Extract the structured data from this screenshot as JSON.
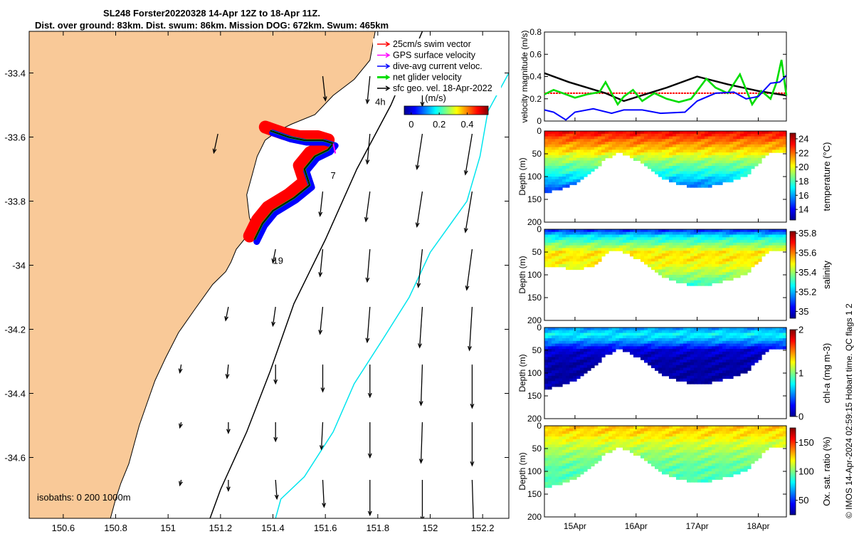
{
  "title_line1": "SL248 Forster20220328 14-Apr 12Z to 18-Apr 11Z.",
  "title_line2": "Dist. over ground: 83km. Dist. swum: 86km. Mission DOG: 672km. Swum: 465km",
  "credit": "© IMOS 14-Apr-2024 02:59:15 Hobart time. QC flags 1  2",
  "colors": {
    "land": "#f9c998",
    "swim": "#ff0000",
    "gps": "#ff00ff",
    "dive": "#0000ff",
    "net": "#00dd00",
    "sfc": "#000000",
    "isobath200": "#000000",
    "isobath1000": "#00e5ee"
  },
  "map": {
    "xlim": [
      150.47,
      152.3
    ],
    "ylim": [
      -34.79,
      -33.27
    ],
    "xticks": [
      150.6,
      150.8,
      151,
      151.2,
      151.4,
      151.6,
      151.8,
      152,
      152.2
    ],
    "xtick_labels": [
      "150.6",
      "150.8",
      "151",
      "151.2",
      "151.4",
      "151.6",
      "151.8",
      "152",
      "152.2"
    ],
    "yticks": [
      -33.4,
      -33.6,
      -33.8,
      -34,
      -34.2,
      -34.4,
      -34.6
    ],
    "ytick_labels": [
      "-33.4",
      "-33.6",
      "-33.8",
      "-34",
      "-34.2",
      "-34.4",
      "-34.6"
    ],
    "legend": [
      {
        "label": "25cm/s swim vector",
        "color": "#ff0000",
        "icon": "red-arrow-icon"
      },
      {
        "label": "GPS surface velocity",
        "color": "#ff00ff",
        "icon": "magenta-arrow-icon"
      },
      {
        "label": "dive-avg current veloc.",
        "color": "#0000ff",
        "icon": "blue-arrow-icon"
      },
      {
        "label": "net glider velocity",
        "color": "#00dd00",
        "icon": "green-arrow-icon"
      },
      {
        "label": "sfc geo. vel. 18-Apr-2022",
        "color": "#000000",
        "icon": "black-arrow-icon"
      }
    ],
    "colorbar_title": "(m/s)",
    "colorbar_ticks": [
      0,
      0.2,
      0.4
    ],
    "colorbar_tick_labels": [
      "0",
      "0.2",
      "0.4"
    ],
    "colorbar_range": [
      -0.05,
      0.55
    ],
    "isobath_label": "isobaths: 0   200   1000m",
    "track_labels": [
      {
        "text": "4h",
        "lon": 151.79,
        "lat": -33.5
      },
      {
        "text": "7",
        "lon": 151.62,
        "lat": -33.73
      },
      {
        "text": "19",
        "lon": 151.4,
        "lat": -33.995
      }
    ],
    "coast": [
      [
        150.47,
        -33.27
      ],
      [
        151.79,
        -33.27
      ],
      [
        151.77,
        -33.36
      ],
      [
        151.71,
        -33.42
      ],
      [
        151.63,
        -33.47
      ],
      [
        151.56,
        -33.53
      ],
      [
        151.47,
        -33.56
      ],
      [
        151.42,
        -33.58
      ],
      [
        151.37,
        -33.61
      ],
      [
        151.34,
        -33.66
      ],
      [
        151.32,
        -33.72
      ],
      [
        151.3,
        -33.78
      ],
      [
        151.31,
        -33.85
      ],
      [
        151.33,
        -33.9
      ],
      [
        151.29,
        -33.92
      ],
      [
        151.26,
        -33.95
      ],
      [
        151.24,
        -33.99
      ],
      [
        151.22,
        -34.02
      ],
      [
        151.17,
        -34.06
      ],
      [
        151.1,
        -34.14
      ],
      [
        151.04,
        -34.21
      ],
      [
        150.99,
        -34.29
      ],
      [
        150.95,
        -34.36
      ],
      [
        150.92,
        -34.43
      ],
      [
        150.89,
        -34.5
      ],
      [
        150.87,
        -34.56
      ],
      [
        150.85,
        -34.62
      ],
      [
        150.82,
        -34.68
      ],
      [
        150.8,
        -34.73
      ],
      [
        150.78,
        -34.79
      ],
      [
        150.47,
        -34.79
      ]
    ],
    "isobath200": [
      [
        151.97,
        -33.27
      ],
      [
        151.85,
        -33.5
      ],
      [
        151.72,
        -33.7
      ],
      [
        151.6,
        -33.92
      ],
      [
        151.48,
        -34.12
      ],
      [
        151.39,
        -34.33
      ],
      [
        151.3,
        -34.52
      ],
      [
        151.2,
        -34.7
      ],
      [
        151.16,
        -34.79
      ]
    ],
    "isobath1000": [
      [
        152.3,
        -33.4
      ],
      [
        152.22,
        -33.52
      ],
      [
        152.19,
        -33.66
      ],
      [
        152.14,
        -33.8
      ],
      [
        152.0,
        -33.96
      ],
      [
        151.92,
        -34.1
      ],
      [
        151.82,
        -34.23
      ],
      [
        151.71,
        -34.37
      ],
      [
        151.63,
        -34.52
      ],
      [
        151.52,
        -34.66
      ],
      [
        151.43,
        -34.73
      ],
      [
        151.41,
        -34.79
      ]
    ],
    "track": [
      [
        151.39,
        -33.58
      ],
      [
        151.46,
        -33.6
      ],
      [
        151.52,
        -33.61
      ],
      [
        151.59,
        -33.61
      ],
      [
        151.63,
        -33.62
      ],
      [
        151.61,
        -33.64
      ],
      [
        151.56,
        -33.66
      ],
      [
        151.52,
        -33.7
      ],
      [
        151.54,
        -33.75
      ],
      [
        151.48,
        -33.79
      ],
      [
        151.4,
        -33.83
      ],
      [
        151.36,
        -33.87
      ],
      [
        151.33,
        -33.92
      ]
    ],
    "arrows": [
      {
        "lon": 151.59,
        "lat": -33.41,
        "u": 0.02,
        "v": -0.18
      },
      {
        "lon": 151.77,
        "lat": -33.41,
        "u": -0.02,
        "v": -0.2
      },
      {
        "lon": 151.97,
        "lat": -33.41,
        "u": 0.0,
        "v": -0.22
      },
      {
        "lon": 151.19,
        "lat": -33.59,
        "u": -0.03,
        "v": -0.14
      },
      {
        "lon": 151.77,
        "lat": -33.59,
        "u": -0.02,
        "v": -0.22
      },
      {
        "lon": 151.97,
        "lat": -33.59,
        "u": -0.04,
        "v": -0.26
      },
      {
        "lon": 152.16,
        "lat": -33.59,
        "u": -0.05,
        "v": -0.3
      },
      {
        "lon": 151.59,
        "lat": -33.77,
        "u": -0.02,
        "v": -0.18
      },
      {
        "lon": 151.77,
        "lat": -33.77,
        "u": -0.03,
        "v": -0.22
      },
      {
        "lon": 151.97,
        "lat": -33.77,
        "u": -0.04,
        "v": -0.26
      },
      {
        "lon": 152.16,
        "lat": -33.77,
        "u": -0.05,
        "v": -0.3
      },
      {
        "lon": 151.41,
        "lat": -33.95,
        "u": -0.02,
        "v": -0.1
      },
      {
        "lon": 151.59,
        "lat": -33.95,
        "u": -0.02,
        "v": -0.2
      },
      {
        "lon": 151.77,
        "lat": -33.95,
        "u": -0.02,
        "v": -0.24
      },
      {
        "lon": 151.97,
        "lat": -33.95,
        "u": -0.03,
        "v": -0.28
      },
      {
        "lon": 152.16,
        "lat": -33.95,
        "u": -0.04,
        "v": -0.3
      },
      {
        "lon": 151.23,
        "lat": -34.13,
        "u": -0.02,
        "v": -0.1
      },
      {
        "lon": 151.41,
        "lat": -34.13,
        "u": -0.02,
        "v": -0.14
      },
      {
        "lon": 151.59,
        "lat": -34.13,
        "u": -0.02,
        "v": -0.2
      },
      {
        "lon": 151.77,
        "lat": -34.13,
        "u": -0.02,
        "v": -0.26
      },
      {
        "lon": 151.97,
        "lat": -34.13,
        "u": -0.02,
        "v": -0.3
      },
      {
        "lon": 152.16,
        "lat": -34.13,
        "u": -0.02,
        "v": -0.32
      },
      {
        "lon": 151.05,
        "lat": -34.31,
        "u": -0.01,
        "v": -0.06
      },
      {
        "lon": 151.23,
        "lat": -34.31,
        "u": -0.01,
        "v": -0.1
      },
      {
        "lon": 151.41,
        "lat": -34.31,
        "u": 0.0,
        "v": -0.14
      },
      {
        "lon": 151.59,
        "lat": -34.31,
        "u": 0.0,
        "v": -0.2
      },
      {
        "lon": 151.77,
        "lat": -34.31,
        "u": 0.0,
        "v": -0.24
      },
      {
        "lon": 151.97,
        "lat": -34.31,
        "u": -0.01,
        "v": -0.3
      },
      {
        "lon": 152.16,
        "lat": -34.31,
        "u": 0.0,
        "v": -0.32
      },
      {
        "lon": 151.05,
        "lat": -34.49,
        "u": -0.01,
        "v": -0.04
      },
      {
        "lon": 151.23,
        "lat": -34.49,
        "u": 0.0,
        "v": -0.08
      },
      {
        "lon": 151.41,
        "lat": -34.49,
        "u": 0.0,
        "v": -0.14
      },
      {
        "lon": 151.59,
        "lat": -34.49,
        "u": -0.01,
        "v": -0.2
      },
      {
        "lon": 151.77,
        "lat": -34.49,
        "u": 0.0,
        "v": -0.26
      },
      {
        "lon": 151.97,
        "lat": -34.49,
        "u": -0.01,
        "v": -0.3
      },
      {
        "lon": 152.16,
        "lat": -34.49,
        "u": 0.0,
        "v": -0.32
      },
      {
        "lon": 151.05,
        "lat": -34.67,
        "u": -0.01,
        "v": -0.04
      },
      {
        "lon": 151.23,
        "lat": -34.67,
        "u": 0.0,
        "v": -0.08
      },
      {
        "lon": 151.41,
        "lat": -34.67,
        "u": 0.01,
        "v": -0.14
      },
      {
        "lon": 151.59,
        "lat": -34.67,
        "u": 0.01,
        "v": -0.2
      },
      {
        "lon": 151.77,
        "lat": -34.67,
        "u": 0.0,
        "v": -0.26
      },
      {
        "lon": 151.97,
        "lat": -34.67,
        "u": 0.0,
        "v": -0.3
      },
      {
        "lon": 152.16,
        "lat": -34.67,
        "u": 0.01,
        "v": -0.32
      }
    ]
  },
  "chart_data": [
    {
      "type": "line",
      "ylabel": "velocity magnitude (m/s)",
      "ylim": [
        0,
        0.8
      ],
      "yticks": [
        0,
        0.2,
        0.4,
        0.6,
        0.8
      ],
      "ytick_labels": [
        "0",
        "0.2",
        "0.4",
        "0.6",
        "0.8"
      ],
      "xlim": [
        14.5,
        18.46
      ],
      "xticks": [
        15,
        16,
        17,
        18
      ],
      "xtick_labels": [
        "15Apr",
        "16Apr",
        "17Apr",
        "18Apr"
      ],
      "series": [
        {
          "color": "#ff0000",
          "x": [
            14.5,
            15.5,
            16.5,
            17.5,
            18.46
          ],
          "y": [
            0.25,
            0.25,
            0.25,
            0.25,
            0.25
          ]
        },
        {
          "color": "#000000",
          "x": [
            14.5,
            14.9,
            15.5,
            15.8,
            16.5,
            17.0,
            17.5,
            18.0,
            18.46
          ],
          "y": [
            0.43,
            0.35,
            0.25,
            0.18,
            0.3,
            0.4,
            0.33,
            0.27,
            0.23
          ]
        },
        {
          "color": "#00dd00",
          "x": [
            14.5,
            14.65,
            14.8,
            15.0,
            15.2,
            15.4,
            15.5,
            15.7,
            15.8,
            15.95,
            16.1,
            16.3,
            16.5,
            16.7,
            16.9,
            17.0,
            17.15,
            17.3,
            17.5,
            17.7,
            17.9,
            18.05,
            18.2,
            18.3,
            18.38,
            18.46
          ],
          "y": [
            0.24,
            0.28,
            0.25,
            0.21,
            0.24,
            0.26,
            0.35,
            0.15,
            0.22,
            0.28,
            0.18,
            0.25,
            0.2,
            0.17,
            0.2,
            0.27,
            0.38,
            0.3,
            0.25,
            0.42,
            0.15,
            0.27,
            0.2,
            0.35,
            0.55,
            0.23
          ]
        },
        {
          "color": "#0000ff",
          "x": [
            14.5,
            14.65,
            14.85,
            15.0,
            15.3,
            15.6,
            15.8,
            16.1,
            16.4,
            16.8,
            17.0,
            17.3,
            17.6,
            17.8,
            18.0,
            18.2,
            18.35,
            18.46
          ],
          "y": [
            0.1,
            0.08,
            0.01,
            0.08,
            0.11,
            0.07,
            0.1,
            0.1,
            0.07,
            0.08,
            0.18,
            0.25,
            0.26,
            0.2,
            0.22,
            0.34,
            0.35,
            0.41
          ]
        }
      ]
    },
    {
      "type": "heatmap",
      "ylabel": "Depth (m)",
      "colorbar_label": "temperature (°C)",
      "ylim": [
        0,
        200
      ],
      "yticks": [
        0,
        50,
        100,
        150,
        200
      ],
      "ytick_labels": [
        "0",
        "50",
        "100",
        "150",
        "200"
      ],
      "clim": [
        12.5,
        24.8
      ],
      "cticks": [
        14,
        16,
        18,
        20,
        22,
        24
      ],
      "ctick_labels": [
        "14",
        "16",
        "18",
        "20",
        "22",
        "24"
      ],
      "colorscale": [
        "#00008f",
        "#0000ff",
        "#0080ff",
        "#00ffff",
        "#80ff80",
        "#ffff00",
        "#ff8000",
        "#ff0000",
        "#800000"
      ],
      "max_depth_x": [
        14.5,
        14.7,
        15.0,
        15.3,
        15.55,
        15.7,
        15.9,
        16.2,
        16.5,
        16.8,
        17.0,
        17.2,
        17.5,
        17.8,
        18.05,
        18.2,
        18.3,
        18.46
      ],
      "max_depth_y": [
        135,
        130,
        115,
        85,
        58,
        48,
        55,
        80,
        108,
        120,
        125,
        122,
        112,
        100,
        65,
        48,
        48,
        48
      ],
      "profile_depths": [
        0,
        20,
        45,
        65,
        90,
        120,
        150
      ],
      "profile_values": [
        23.5,
        22,
        20.5,
        19,
        17.5,
        15.5,
        14
      ]
    },
    {
      "type": "heatmap",
      "ylabel": "Depth (m)",
      "colorbar_label": "salinity",
      "ylim": [
        0,
        200
      ],
      "yticks": [
        0,
        50,
        100,
        150,
        200
      ],
      "ytick_labels": [
        "0",
        "50",
        "100",
        "150",
        "200"
      ],
      "clim": [
        34.93,
        35.82
      ],
      "cticks": [
        35,
        35.2,
        35.4,
        35.6,
        35.8
      ],
      "ctick_labels": [
        "35",
        "35.2",
        "35.4",
        "35.6",
        "35.8"
      ],
      "colorscale": [
        "#00008f",
        "#0000ff",
        "#0080ff",
        "#00ffff",
        "#80ff80",
        "#ffff00",
        "#ff8000",
        "#ff0000",
        "#800000"
      ],
      "max_depth_x": [
        14.5,
        14.7,
        15.0,
        15.3,
        15.55,
        15.7,
        15.9,
        16.2,
        16.5,
        16.8,
        17.0,
        17.2,
        17.5,
        17.8,
        18.05,
        18.2,
        18.3,
        18.46
      ],
      "max_depth_y": [
        80,
        80,
        90,
        80,
        50,
        48,
        55,
        80,
        108,
        120,
        125,
        122,
        112,
        100,
        65,
        48,
        48,
        48
      ],
      "profile_depths": [
        0,
        15,
        30,
        50,
        70,
        95,
        125
      ],
      "profile_values": [
        35.05,
        35.25,
        35.35,
        35.5,
        35.5,
        35.42,
        35.3
      ]
    },
    {
      "type": "heatmap",
      "ylabel": "Depth (m)",
      "colorbar_label": "chl-a (mg m-3)",
      "ylim": [
        0,
        200
      ],
      "yticks": [
        0,
        50,
        100,
        150,
        200
      ],
      "ytick_labels": [
        "0",
        "50",
        "100",
        "150",
        "200"
      ],
      "clim": [
        0,
        2
      ],
      "cticks": [
        0,
        1,
        2
      ],
      "ctick_labels": [
        "0",
        "1",
        "2"
      ],
      "colorscale": [
        "#00008f",
        "#0000ff",
        "#0080ff",
        "#00ffff",
        "#80ff80",
        "#ffff00",
        "#ff8000",
        "#ff0000",
        "#800000"
      ],
      "max_depth_x": [
        14.5,
        14.7,
        15.0,
        15.3,
        15.55,
        15.7,
        15.9,
        16.2,
        16.5,
        16.8,
        17.0,
        17.2,
        17.5,
        17.8,
        18.05,
        18.2,
        18.3,
        18.46
      ],
      "max_depth_y": [
        135,
        130,
        115,
        85,
        58,
        48,
        55,
        80,
        108,
        120,
        125,
        122,
        112,
        100,
        65,
        48,
        48,
        48
      ],
      "profile_depths": [
        0,
        15,
        30,
        50,
        80,
        120
      ],
      "profile_values": [
        0.5,
        0.75,
        0.55,
        0.15,
        0.05,
        0.05
      ]
    },
    {
      "type": "heatmap",
      "ylabel": "Depth (m)",
      "colorbar_label": "Ox. sat. ratio (%)",
      "ylim": [
        0,
        200
      ],
      "yticks": [
        0,
        50,
        100,
        150,
        200
      ],
      "ytick_labels": [
        "0",
        "50",
        "100",
        "150",
        "200"
      ],
      "clim": [
        25,
        175
      ],
      "cticks": [
        50,
        100,
        150
      ],
      "ctick_labels": [
        "50",
        "100",
        "150"
      ],
      "colorscale": [
        "#00008f",
        "#0000ff",
        "#0080ff",
        "#00ffff",
        "#80ff80",
        "#ffff00",
        "#ff8000",
        "#ff0000",
        "#800000"
      ],
      "max_depth_x": [
        14.5,
        14.7,
        15.0,
        15.3,
        15.55,
        15.7,
        15.9,
        16.2,
        16.5,
        16.8,
        17.0,
        17.2,
        17.5,
        17.8,
        18.05,
        18.2,
        18.3,
        18.46
      ],
      "max_depth_y": [
        135,
        130,
        115,
        85,
        58,
        48,
        55,
        80,
        108,
        120,
        125,
        122,
        112,
        100,
        65,
        48,
        48,
        48
      ],
      "profile_depths": [
        0,
        20,
        40,
        60,
        90,
        130
      ],
      "profile_values": [
        128,
        122,
        112,
        104,
        95,
        92
      ]
    }
  ]
}
